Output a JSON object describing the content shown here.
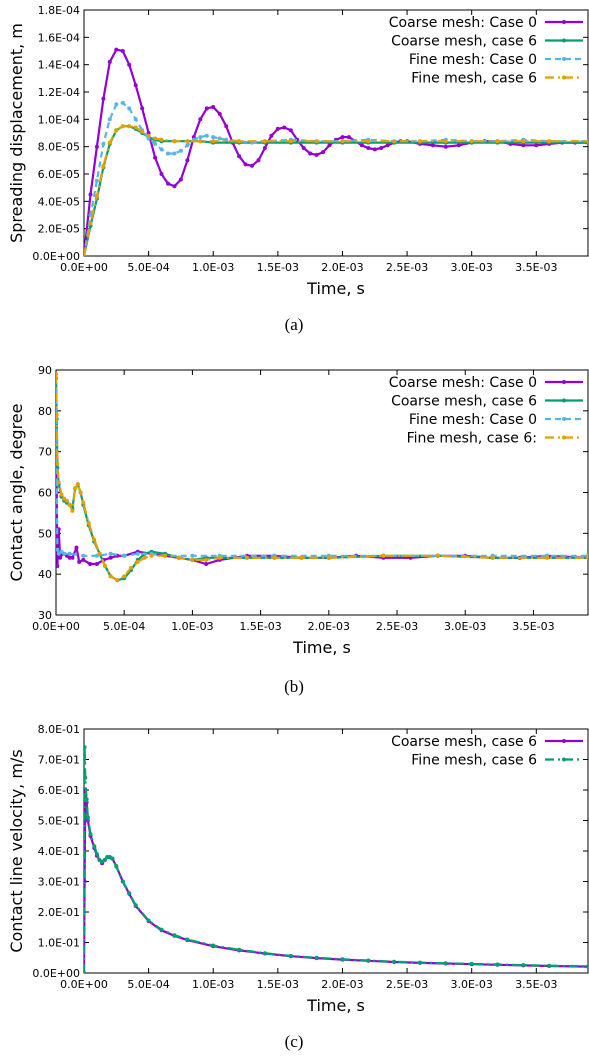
{
  "chart_data": [
    {
      "type": "line",
      "caption": "(a)",
      "xlabel": "Time, s",
      "ylabel": "Spreading displacement, m",
      "xlim": [
        0,
        0.0039
      ],
      "ylim": [
        0,
        0.00018
      ],
      "x_ticks": [
        "0.0E+00",
        "5.0E-04",
        "1.0E-03",
        "1.5E-03",
        "2.0E-03",
        "2.5E-03",
        "3.0E-03",
        "3.5E-03"
      ],
      "x_tick_values": [
        0,
        0.0005,
        0.001,
        0.0015,
        0.002,
        0.0025,
        0.003,
        0.0035
      ],
      "y_ticks": [
        "0.0E+00",
        "2.0E-05",
        "4.0E-05",
        "6.0E-05",
        "8.0E-05",
        "1.0E-04",
        "1.2E-04",
        "1.4E-04",
        "1.6E-04",
        "1.8E-04"
      ],
      "y_tick_values": [
        0,
        2e-05,
        4e-05,
        6e-05,
        8e-05,
        0.0001,
        0.00012,
        0.00014,
        0.00016,
        0.00018
      ],
      "legend_position": "top-right",
      "grid": false,
      "series": [
        {
          "name": "Coarse mesh:  Case 0",
          "color": "#9400d3",
          "style": "solid-dots",
          "x": [
            0,
            5e-05,
            0.0001,
            0.00015,
            0.0002,
            0.00025,
            0.0003,
            0.00035,
            0.0004,
            0.00045,
            0.0005,
            0.00055,
            0.0006,
            0.00065,
            0.0007,
            0.00075,
            0.0008,
            0.00085,
            0.0009,
            0.00095,
            0.001,
            0.00105,
            0.0011,
            0.00115,
            0.0012,
            0.00125,
            0.0013,
            0.00135,
            0.0014,
            0.00145,
            0.0015,
            0.00155,
            0.0016,
            0.00165,
            0.0017,
            0.00175,
            0.0018,
            0.00185,
            0.0019,
            0.00195,
            0.002,
            0.00205,
            0.0021,
            0.00215,
            0.0022,
            0.00225,
            0.0023,
            0.00235,
            0.0024,
            0.00245,
            0.0025,
            0.0026,
            0.0027,
            0.0028,
            0.0029,
            0.003,
            0.0031,
            0.0032,
            0.0033,
            0.0034,
            0.0035,
            0.0036,
            0.0037,
            0.0038,
            0.0039
          ],
          "y": [
            0,
            4.5e-05,
            8e-05,
            0.000115,
            0.000142,
            0.000151,
            0.00015,
            0.00014,
            0.000125,
            0.000108,
            9e-05,
            7.2e-05,
            6e-05,
            5.3e-05,
            5.1e-05,
            5.6e-05,
            7e-05,
            8.7e-05,
            0.0001,
            0.000108,
            0.000109,
            0.000104,
            9.5e-05,
            8.3e-05,
            7.3e-05,
            6.7e-05,
            6.6e-05,
            7e-05,
            7.9e-05,
            8.8e-05,
            9.3e-05,
            9.4e-05,
            9.2e-05,
            8.5e-05,
            7.9e-05,
            7.5e-05,
            7.4e-05,
            7.6e-05,
            8.1e-05,
            8.5e-05,
            8.7e-05,
            8.7e-05,
            8.4e-05,
            8.1e-05,
            7.9e-05,
            7.8e-05,
            7.9e-05,
            8.1e-05,
            8.3e-05,
            8.4e-05,
            8.4e-05,
            8.2e-05,
            8.1e-05,
            8e-05,
            8.1e-05,
            8.3e-05,
            8.4e-05,
            8.4e-05,
            8.2e-05,
            8.1e-05,
            8.1e-05,
            8.2e-05,
            8.3e-05,
            8.3e-05,
            8.3e-05
          ]
        },
        {
          "name": "Coarse mesh,  case 6",
          "color": "#009e73",
          "style": "solid-dots",
          "x": [
            0,
            5e-05,
            0.0001,
            0.00015,
            0.0002,
            0.00025,
            0.0003,
            0.00035,
            0.0004,
            0.00045,
            0.0005,
            0.00055,
            0.0006,
            0.0007,
            0.0008,
            0.0009,
            0.001,
            0.0012,
            0.0014,
            0.0016,
            0.0018,
            0.002,
            0.0022,
            0.0024,
            0.0026,
            0.0028,
            0.003,
            0.0032,
            0.0034,
            0.0036,
            0.0039
          ],
          "y": [
            0,
            2.2e-05,
            4.2e-05,
            6.5e-05,
            8.2e-05,
            9.2e-05,
            9.5e-05,
            9.5e-05,
            9.3e-05,
            9e-05,
            8.7e-05,
            8.5e-05,
            8.4e-05,
            8.4e-05,
            8.4e-05,
            8.4e-05,
            8.3e-05,
            8.3e-05,
            8.3e-05,
            8.3e-05,
            8.3e-05,
            8.3e-05,
            8.3e-05,
            8.3e-05,
            8.3e-05,
            8.3e-05,
            8.3e-05,
            8.3e-05,
            8.3e-05,
            8.3e-05,
            8.3e-05
          ]
        },
        {
          "name": "Fine mesh:  Case 0",
          "color": "#56b4e9",
          "style": "dashed-dots",
          "x": [
            0,
            5e-05,
            0.0001,
            0.00015,
            0.0002,
            0.00025,
            0.0003,
            0.00035,
            0.0004,
            0.00045,
            0.0005,
            0.00055,
            0.0006,
            0.00065,
            0.0007,
            0.00075,
            0.0008,
            0.00085,
            0.0009,
            0.00095,
            0.001,
            0.00105,
            0.0011,
            0.0012,
            0.0013,
            0.0014,
            0.0016,
            0.0018,
            0.002,
            0.0022,
            0.0024,
            0.0026,
            0.0028,
            0.003,
            0.0032,
            0.0034,
            0.0036,
            0.0039
          ],
          "y": [
            0,
            3e-05,
            5.5e-05,
            8.2e-05,
            0.0001,
            0.000111,
            0.000112,
            0.000108,
            0.0001,
            9.2e-05,
            8.6e-05,
            8.2e-05,
            7.8e-05,
            7.5e-05,
            7.5e-05,
            7.7e-05,
            8.1e-05,
            8.5e-05,
            8.7e-05,
            8.8e-05,
            8.7e-05,
            8.6e-05,
            8.5e-05,
            8.4e-05,
            8.3e-05,
            8.4e-05,
            8.5e-05,
            8.4e-05,
            8.4e-05,
            8.5e-05,
            8.4e-05,
            8.4e-05,
            8.5e-05,
            8.4e-05,
            8.4e-05,
            8.5e-05,
            8.4e-05,
            8.4e-05
          ]
        },
        {
          "name": "Fine mesh,  case 6",
          "color": "#e69f00",
          "style": "dash-dot",
          "x": [
            0,
            5e-05,
            0.0001,
            0.00015,
            0.0002,
            0.00025,
            0.0003,
            0.00035,
            0.0004,
            0.00045,
            0.0005,
            0.00055,
            0.0006,
            0.0007,
            0.0008,
            0.0009,
            0.001,
            0.0012,
            0.0014,
            0.0016,
            0.0018,
            0.002,
            0.0022,
            0.0024,
            0.0026,
            0.0028,
            0.003,
            0.0032,
            0.0034,
            0.0036,
            0.0039
          ],
          "y": [
            0,
            2.4e-05,
            4.4e-05,
            6.6e-05,
            8.3e-05,
            9.2e-05,
            9.5e-05,
            9.5e-05,
            9.4e-05,
            9.1e-05,
            8.8e-05,
            8.6e-05,
            8.5e-05,
            8.4e-05,
            8.4e-05,
            8.4e-05,
            8.4e-05,
            8.4e-05,
            8.4e-05,
            8.4e-05,
            8.4e-05,
            8.4e-05,
            8.4e-05,
            8.4e-05,
            8.4e-05,
            8.4e-05,
            8.4e-05,
            8.4e-05,
            8.4e-05,
            8.4e-05,
            8.4e-05
          ]
        }
      ]
    },
    {
      "type": "line",
      "caption": "(b)",
      "xlabel": "Time, s",
      "ylabel": "Contact angle, degree",
      "xlim": [
        0,
        0.0039
      ],
      "ylim": [
        30,
        90
      ],
      "x_ticks": [
        "0.0E+00",
        "5.0E-04",
        "1.0E-03",
        "1.5E-03",
        "2.0E-03",
        "2.5E-03",
        "3.0E-03",
        "3.5E-03"
      ],
      "x_tick_values": [
        0,
        0.0005,
        0.001,
        0.0015,
        0.002,
        0.0025,
        0.003,
        0.0035
      ],
      "y_ticks": [
        "30",
        "40",
        "50",
        "60",
        "70",
        "80",
        "90"
      ],
      "y_tick_values": [
        30,
        40,
        50,
        60,
        70,
        80,
        90
      ],
      "legend_position": "top-right",
      "grid": false,
      "series": [
        {
          "name": "Coarse mesh:  Case 0",
          "color": "#9400d3",
          "style": "solid-dots",
          "x": [
            0,
            5e-06,
            1e-05,
            2e-05,
            3e-05,
            5e-05,
            8e-05,
            0.0001,
            0.00012,
            0.00015,
            0.00017,
            0.0002,
            0.00025,
            0.0003,
            0.00035,
            0.0004,
            0.00045,
            0.0005,
            0.0006,
            0.0007,
            0.0008,
            0.0009,
            0.001,
            0.0011,
            0.0012,
            0.0014,
            0.0016,
            0.0018,
            0.002,
            0.0022,
            0.0024,
            0.0026,
            0.0028,
            0.003,
            0.0032,
            0.0034,
            0.0036,
            0.0039
          ],
          "y": [
            88,
            60,
            42,
            51,
            44,
            45,
            44.5,
            44,
            44,
            46.5,
            43,
            43.5,
            42.5,
            42.5,
            43.5,
            44,
            44.5,
            44.5,
            45.5,
            45,
            44.5,
            44,
            43.5,
            42.5,
            43.5,
            44.5,
            44.5,
            44,
            44,
            44.5,
            44,
            44,
            44.5,
            44.5,
            44,
            44,
            44.5,
            44
          ]
        },
        {
          "name": "Coarse mesh,  case 6",
          "color": "#009e73",
          "style": "solid-dots",
          "x": [
            0,
            5e-06,
            1e-05,
            2e-05,
            4e-05,
            6e-05,
            8e-05,
            0.0001,
            0.00012,
            0.00014,
            0.00016,
            0.00018,
            0.0002,
            0.00024,
            0.00028,
            0.00032,
            0.00036,
            0.0004,
            0.00045,
            0.0005,
            0.00055,
            0.0006,
            0.00065,
            0.0007,
            0.0008,
            0.0009,
            0.001,
            0.0011,
            0.0012,
            0.0014,
            0.0016,
            0.0018,
            0.002,
            0.0024,
            0.0028,
            0.0032,
            0.0036,
            0.0039
          ],
          "y": [
            88,
            78,
            66,
            62,
            59,
            58,
            57.5,
            57,
            56,
            61,
            62,
            60,
            57,
            52,
            48,
            45,
            42,
            39.5,
            38.5,
            39,
            41,
            43.5,
            45,
            45.5,
            45,
            44,
            43.5,
            44,
            44,
            44,
            44,
            44,
            44,
            44.5,
            44.5,
            44,
            44,
            44
          ]
        },
        {
          "name": "Fine mesh:  Case 0",
          "color": "#56b4e9",
          "style": "dashed-dots",
          "x": [
            0,
            5e-06,
            1e-05,
            2e-05,
            4e-05,
            6e-05,
            0.0001,
            0.0002,
            0.0003,
            0.0004,
            0.0005,
            0.0006,
            0.0007,
            0.0008,
            0.001,
            0.0012,
            0.0016,
            0.002,
            0.0024,
            0.0028,
            0.0032,
            0.0036,
            0.0039
          ],
          "y": [
            88,
            62,
            46,
            45,
            45.5,
            45,
            45,
            44.5,
            44.5,
            45,
            44.5,
            45,
            45,
            44.5,
            44.5,
            44.5,
            44.5,
            44.5,
            44.5,
            44.5,
            44.5,
            44.5,
            44.5
          ]
        },
        {
          "name": "Fine mesh,  case 6:",
          "color": "#e69f00",
          "style": "dash-dot",
          "x": [
            0,
            5e-06,
            1e-05,
            2e-05,
            4e-05,
            6e-05,
            8e-05,
            0.0001,
            0.00012,
            0.00014,
            0.00016,
            0.00018,
            0.0002,
            0.00024,
            0.00028,
            0.00032,
            0.00036,
            0.0004,
            0.00045,
            0.0005,
            0.00055,
            0.0006,
            0.00065,
            0.0007,
            0.0008,
            0.0009,
            0.001,
            0.0011,
            0.0012,
            0.0014,
            0.0016,
            0.0018,
            0.002,
            0.0024,
            0.0028,
            0.0032,
            0.0036,
            0.0039
          ],
          "y": [
            89,
            79,
            67,
            62.5,
            59.5,
            58.5,
            58,
            57,
            55.5,
            61,
            62,
            60,
            57.5,
            52.5,
            48.5,
            45,
            42,
            39.5,
            38.5,
            39.5,
            41.5,
            43,
            44,
            44.5,
            44.5,
            44,
            43.5,
            43.5,
            44,
            44,
            44,
            44,
            44,
            44.5,
            44.5,
            44,
            44,
            44
          ]
        }
      ]
    },
    {
      "type": "line",
      "caption": "(c)",
      "xlabel": "Time, s",
      "ylabel": "Contact line velocity, m/s",
      "xlim": [
        0,
        0.0039
      ],
      "ylim": [
        0,
        0.8
      ],
      "x_ticks": [
        "0.0E+00",
        "5.0E-04",
        "1.0E-03",
        "1.5E-03",
        "2.0E-03",
        "2.5E-03",
        "3.0E-03",
        "3.5E-03"
      ],
      "x_tick_values": [
        0,
        0.0005,
        0.001,
        0.0015,
        0.002,
        0.0025,
        0.003,
        0.0035
      ],
      "y_ticks": [
        "0.0E+00",
        "1.0E-01",
        "2.0E-01",
        "3.0E-01",
        "4.0E-01",
        "5.0E-01",
        "6.0E-01",
        "7.0E-01",
        "8.0E-01"
      ],
      "y_tick_values": [
        0,
        0.1,
        0.2,
        0.3,
        0.4,
        0.5,
        0.6,
        0.7,
        0.8
      ],
      "legend_position": "top-right",
      "grid": false,
      "series": [
        {
          "name": "Coarse mesh,  case 6",
          "color": "#9400d3",
          "style": "solid-dots",
          "x": [
            0,
            5e-06,
            1e-05,
            2e-05,
            3e-05,
            5e-05,
            8e-05,
            0.0001,
            0.00012,
            0.00014,
            0.00016,
            0.00018,
            0.0002,
            0.00022,
            0.00025,
            0.0003,
            0.00035,
            0.0004,
            0.0005,
            0.0006,
            0.0007,
            0.0008,
            0.001,
            0.0012,
            0.0014,
            0.0016,
            0.0018,
            0.002,
            0.0022,
            0.0024,
            0.0026,
            0.0028,
            0.003,
            0.0032,
            0.0034,
            0.0036,
            0.0039
          ],
          "y": [
            0,
            0.3,
            0.6,
            0.56,
            0.5,
            0.45,
            0.41,
            0.385,
            0.37,
            0.36,
            0.37,
            0.38,
            0.38,
            0.375,
            0.35,
            0.3,
            0.26,
            0.22,
            0.17,
            0.14,
            0.122,
            0.108,
            0.088,
            0.074,
            0.064,
            0.055,
            0.049,
            0.044,
            0.04,
            0.036,
            0.033,
            0.031,
            0.029,
            0.027,
            0.025,
            0.023,
            0.021
          ]
        },
        {
          "name": "Fine mesh,  case 6",
          "color": "#009e73",
          "style": "dash-dot",
          "x": [
            0,
            5e-06,
            1e-05,
            2e-05,
            3e-05,
            5e-05,
            8e-05,
            0.0001,
            0.00012,
            0.00014,
            0.00016,
            0.00018,
            0.0002,
            0.00022,
            0.00025,
            0.0003,
            0.00035,
            0.0004,
            0.0005,
            0.0006,
            0.0007,
            0.0008,
            0.001,
            0.0012,
            0.0014,
            0.0016,
            0.0018,
            0.002,
            0.0022,
            0.0024,
            0.0026,
            0.0028,
            0.003,
            0.0032,
            0.0034,
            0.0036,
            0.0039
          ],
          "y": [
            0,
            0.74,
            0.64,
            0.57,
            0.51,
            0.455,
            0.415,
            0.39,
            0.37,
            0.365,
            0.37,
            0.38,
            0.38,
            0.375,
            0.35,
            0.3,
            0.262,
            0.222,
            0.172,
            0.142,
            0.124,
            0.11,
            0.09,
            0.076,
            0.065,
            0.056,
            0.05,
            0.045,
            0.041,
            0.037,
            0.034,
            0.032,
            0.03,
            0.028,
            0.026,
            0.024,
            0.022
          ]
        }
      ]
    }
  ]
}
